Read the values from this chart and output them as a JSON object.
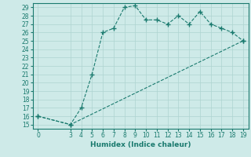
{
  "xlabel": "Humidex (Indice chaleur)",
  "ylabel": "",
  "bg_color": "#ceeae8",
  "grid_color": "#aed4d0",
  "line_color": "#1a7a6e",
  "xlim": [
    -0.5,
    19.5
  ],
  "ylim": [
    14.5,
    29.5
  ],
  "xticks": [
    0,
    3,
    4,
    5,
    6,
    7,
    8,
    9,
    10,
    11,
    12,
    13,
    14,
    15,
    16,
    17,
    18,
    19
  ],
  "yticks": [
    15,
    16,
    17,
    18,
    19,
    20,
    21,
    22,
    23,
    24,
    25,
    26,
    27,
    28,
    29
  ],
  "line1_x": [
    0,
    3,
    4,
    5,
    6,
    7,
    8,
    9,
    10,
    11,
    12,
    13,
    14,
    15,
    16,
    17,
    18,
    19
  ],
  "line1_y": [
    16,
    15,
    17,
    21,
    26,
    26.5,
    29,
    29.2,
    27.5,
    27.5,
    27,
    28,
    27,
    28.5,
    27,
    26.5,
    26,
    25
  ],
  "line2_x": [
    0,
    3,
    19
  ],
  "line2_y": [
    16,
    15,
    25
  ],
  "tick_fontsize": 5.5,
  "xlabel_fontsize": 6.5
}
